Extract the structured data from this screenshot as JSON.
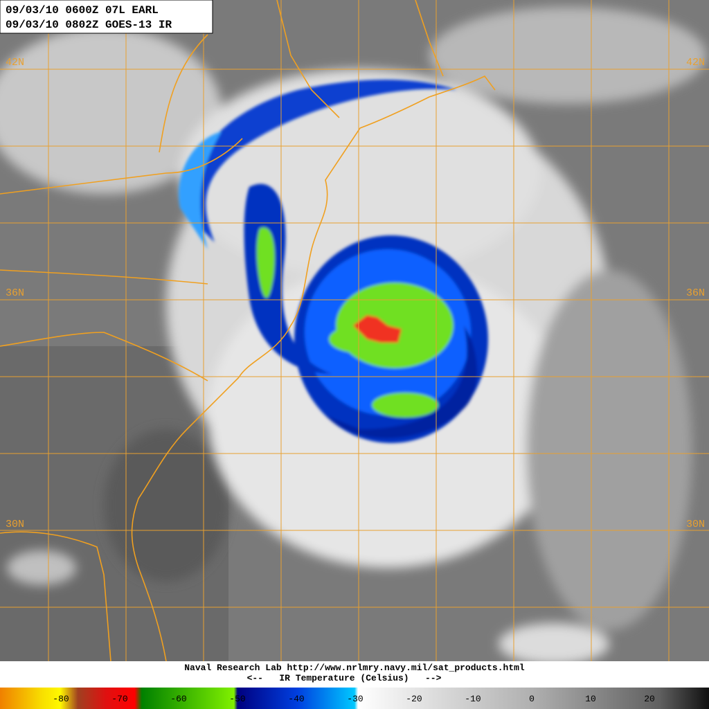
{
  "header": {
    "lines": [
      "09/03/10 0600Z  07L EARL",
      "09/03/10 0802Z  GOES-13 IR"
    ]
  },
  "grid_labels": {
    "left": [
      "42N",
      "36N",
      "30N"
    ],
    "right": [
      "42N",
      "36N",
      "30N"
    ]
  },
  "footer": {
    "credit": "Naval Research Lab http://www.nrlmry.navy.mil/sat_products.html",
    "scale_title": "<--   IR Temperature (Celsius)   -->"
  },
  "color_scale": {
    "labels": [
      "-80",
      "-70",
      "-60",
      "-50",
      "-40",
      "-30",
      "-20",
      "-10",
      "0",
      "10",
      "20"
    ]
  }
}
